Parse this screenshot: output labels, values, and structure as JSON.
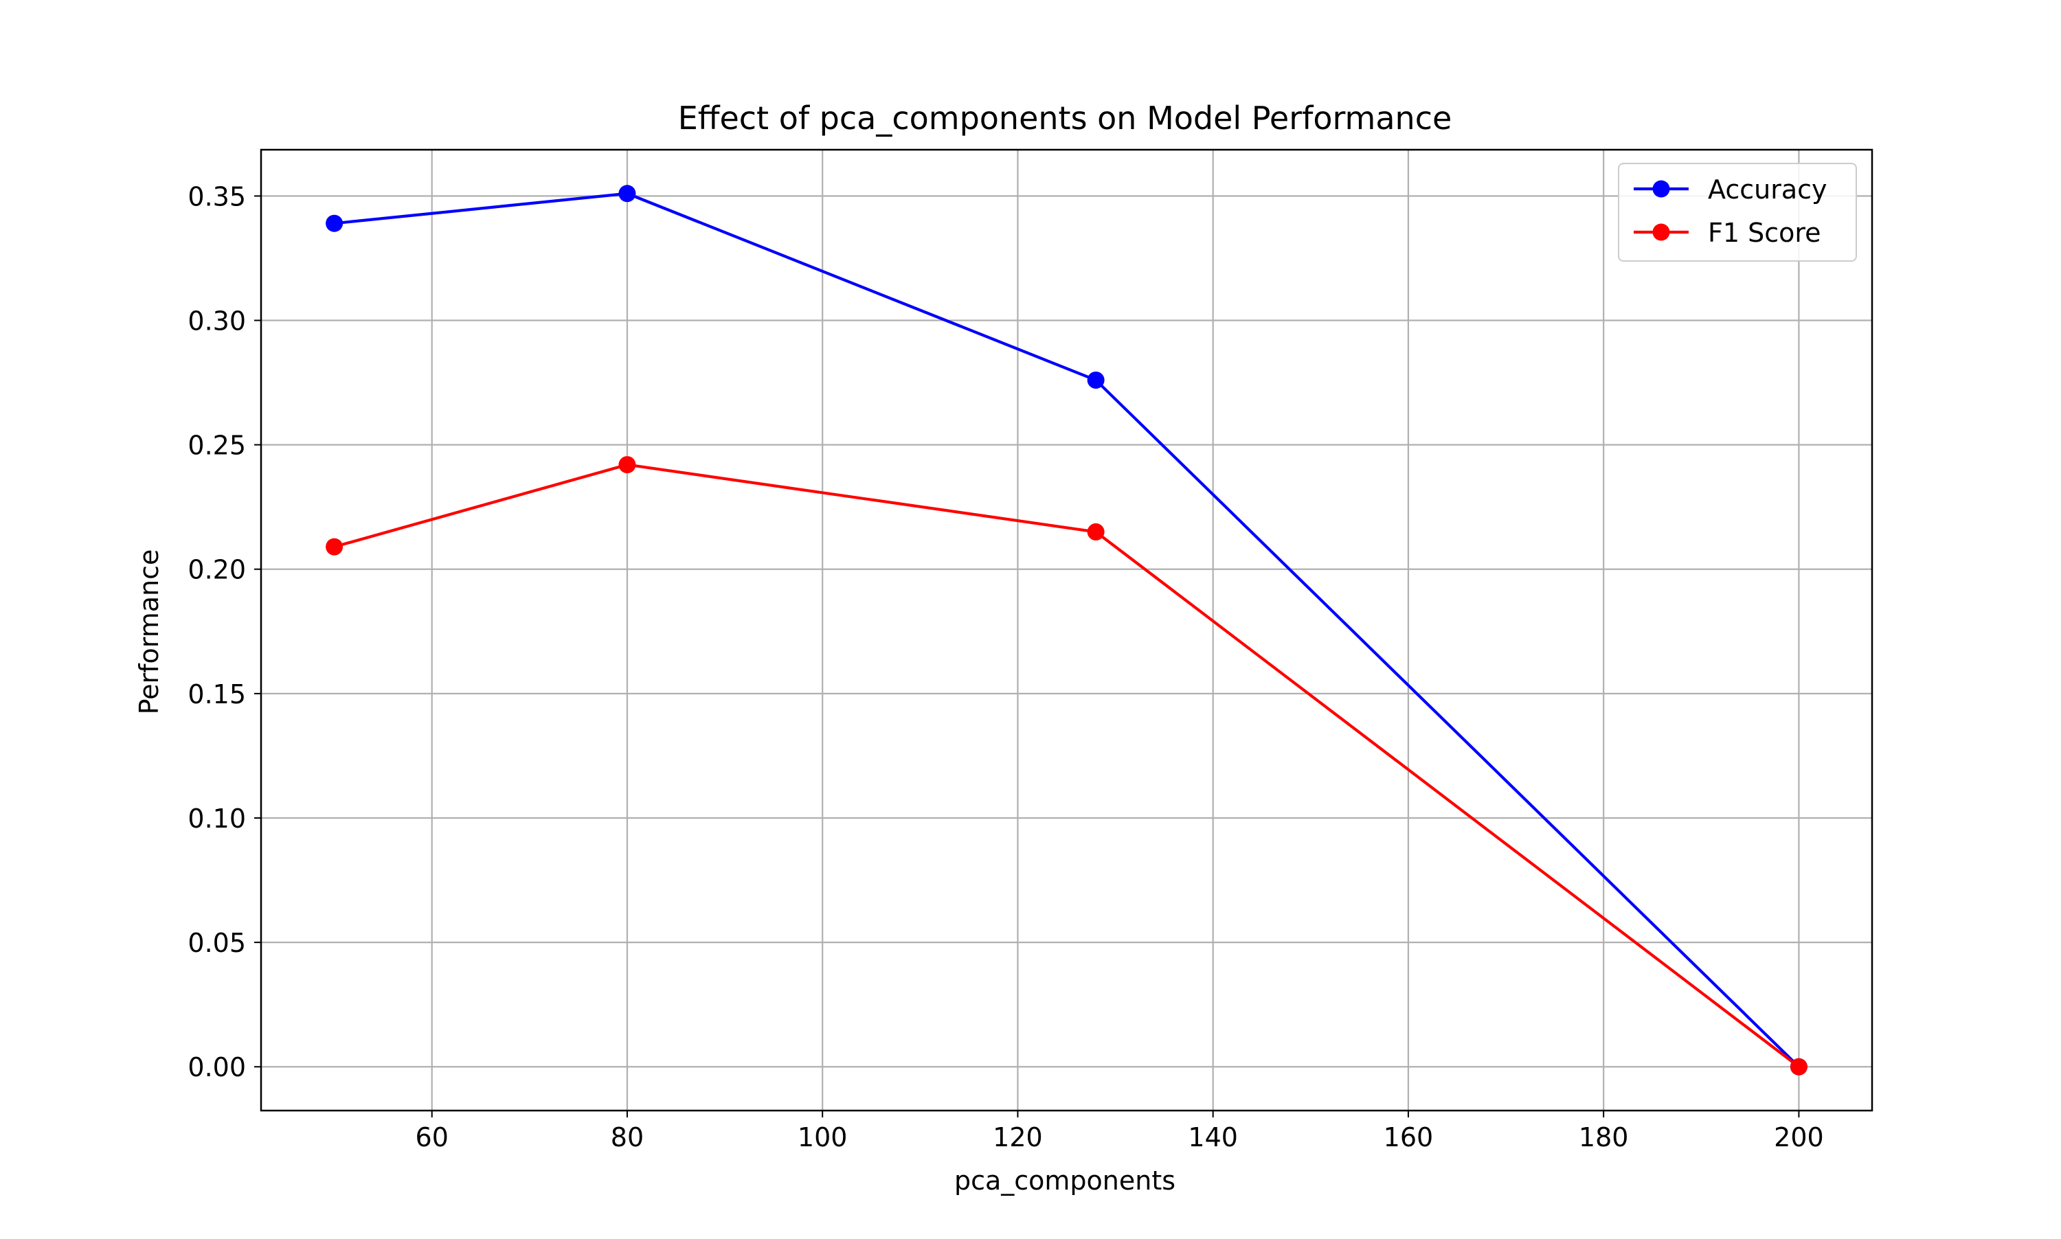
{
  "chart_data": {
    "type": "line",
    "title": "Effect of pca_components on Model Performance",
    "xlabel": "pca_components",
    "ylabel": "Performance",
    "x": [
      50,
      80,
      128,
      200
    ],
    "series": [
      {
        "name": "Accuracy",
        "color": "#0000ff",
        "values": [
          0.339,
          0.351,
          0.276,
          0.0
        ]
      },
      {
        "name": "F1 Score",
        "color": "#ff0000",
        "values": [
          0.209,
          0.242,
          0.215,
          0.0
        ]
      }
    ],
    "xlim": [
      42.5,
      207.5
    ],
    "ylim": [
      -0.0176,
      0.3686
    ],
    "xticks": [
      60,
      80,
      100,
      120,
      140,
      160,
      180,
      200
    ],
    "xtick_labels": [
      "60",
      "80",
      "100",
      "120",
      "140",
      "160",
      "180",
      "200"
    ],
    "yticks": [
      0.0,
      0.05,
      0.1,
      0.15,
      0.2,
      0.25,
      0.3,
      0.35
    ],
    "ytick_labels": [
      "0.00",
      "0.05",
      "0.10",
      "0.15",
      "0.20",
      "0.25",
      "0.30",
      "0.35"
    ],
    "grid": true,
    "legend_position": "top-right"
  }
}
